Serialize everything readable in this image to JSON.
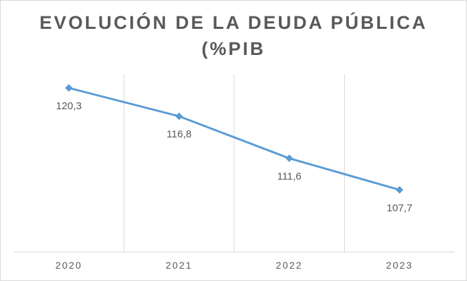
{
  "chart_data": {
    "type": "line",
    "title": "EVOLUCIÓN DE LA DEUDA PÚBLICA (%PIB",
    "title_lines": [
      "EVOLUCIÓN DE LA DEUDA PÚBLICA",
      "(%PIB"
    ],
    "categories": [
      "2020",
      "2021",
      "2022",
      "2023"
    ],
    "series": [
      {
        "values": [
          120.3,
          116.8,
          111.6,
          107.7
        ],
        "value_labels": [
          "120,3",
          "116,8",
          "111,6",
          "107,7"
        ],
        "color": "#5b9bd5",
        "marker": "diamond"
      }
    ],
    "ylim": [
      100,
      122
    ],
    "grid": "vertical",
    "legend": "none",
    "colors": {
      "line": "#5b9bd5",
      "grid": "#d9d9d9",
      "text": "#595959"
    }
  }
}
